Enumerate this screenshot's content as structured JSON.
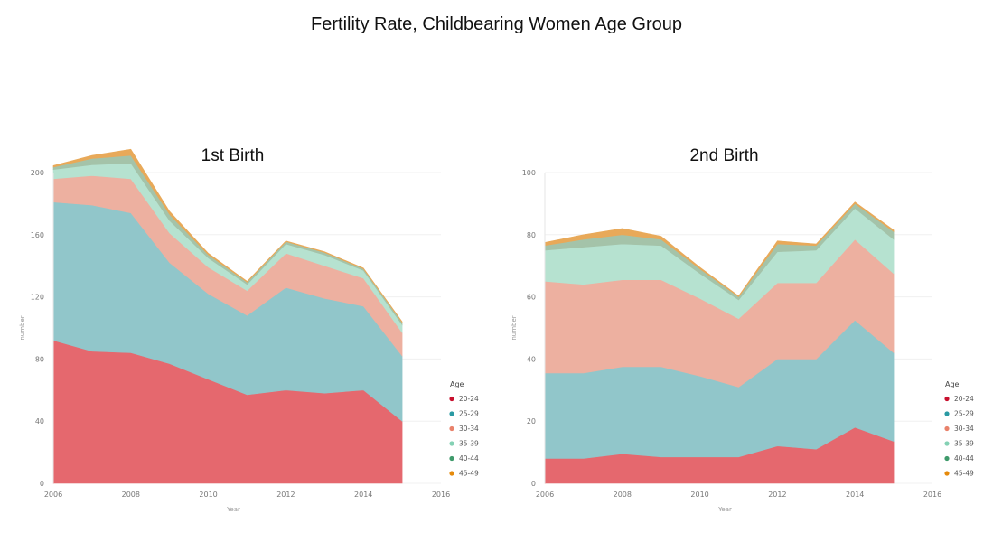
{
  "title": "Fertility Rate, Childbearing Women Age Group",
  "chart_data": [
    {
      "type": "area",
      "stacked": true,
      "title": "1st Birth",
      "xlabel": "Year",
      "ylabel": "number",
      "x": [
        2006,
        2007,
        2008,
        2009,
        2010,
        2011,
        2012,
        2013,
        2014,
        2015
      ],
      "xlim": [
        2006,
        2016
      ],
      "ylim": [
        0,
        200
      ],
      "xticks": [
        2006,
        2008,
        2010,
        2012,
        2014,
        2016
      ],
      "yticks": [
        0,
        40,
        80,
        120,
        160,
        200
      ],
      "legend_title": "Age",
      "legend_position": "right",
      "series": [
        {
          "name": "20-24",
          "color": "#e5686e",
          "values": [
            92,
            85,
            84,
            77,
            67,
            57,
            60,
            58,
            60,
            40
          ]
        },
        {
          "name": "25-29",
          "color": "#91c6ca",
          "values": [
            89,
            94,
            90,
            65,
            55,
            51,
            66,
            61,
            54,
            42
          ]
        },
        {
          "name": "30-34",
          "color": "#edb0a0",
          "values": [
            15,
            19,
            22,
            19,
            17,
            16,
            22,
            21,
            18,
            15
          ]
        },
        {
          "name": "35-39",
          "color": "#b6e2d0",
          "values": [
            6,
            7,
            10,
            8,
            6,
            4,
            6,
            7,
            5,
            5
          ]
        },
        {
          "name": "40-44",
          "color": "#a4c3a9",
          "values": [
            1.5,
            4,
            5,
            4,
            2,
            1.5,
            1.5,
            1.5,
            1,
            1.5
          ]
        },
        {
          "name": "45-49",
          "color": "#e8a959",
          "values": [
            1,
            2,
            4,
            2,
            1,
            0.5,
            0.5,
            0.5,
            0.5,
            0.5
          ]
        }
      ]
    },
    {
      "type": "area",
      "stacked": true,
      "title": "2nd Birth",
      "xlabel": "Year",
      "ylabel": "number",
      "x": [
        2006,
        2007,
        2008,
        2009,
        2010,
        2011,
        2012,
        2013,
        2014,
        2015
      ],
      "xlim": [
        2006,
        2016
      ],
      "ylim": [
        0,
        100
      ],
      "xticks": [
        2006,
        2008,
        2010,
        2012,
        2014,
        2016
      ],
      "yticks": [
        0,
        20,
        40,
        60,
        80,
        100
      ],
      "legend_title": "Age",
      "legend_position": "right",
      "series": [
        {
          "name": "20-24",
          "color": "#e5686e",
          "values": [
            8,
            8,
            9.5,
            8.5,
            8.5,
            8.5,
            12,
            11,
            18,
            13.5
          ]
        },
        {
          "name": "25-29",
          "color": "#91c6ca",
          "values": [
            27.5,
            27.5,
            28,
            29,
            26,
            22.5,
            28,
            29,
            34.5,
            28.5
          ]
        },
        {
          "name": "30-34",
          "color": "#edb0a0",
          "values": [
            29.5,
            28.5,
            28,
            28,
            25,
            22,
            24.5,
            24.5,
            26,
            25.5
          ]
        },
        {
          "name": "35-39",
          "color": "#b6e2d0",
          "values": [
            10,
            12,
            11.5,
            11,
            8,
            6,
            10,
            10.5,
            10,
            11
          ]
        },
        {
          "name": "40-44",
          "color": "#a4c3a9",
          "values": [
            1.5,
            2.5,
            3,
            2,
            1.5,
            1,
            2.5,
            1.5,
            1.5,
            2.5
          ]
        },
        {
          "name": "45-49",
          "color": "#e8a959",
          "values": [
            1,
            1.5,
            2,
            1,
            0.5,
            0.3,
            1,
            0.5,
            0.5,
            0.5
          ]
        }
      ]
    }
  ]
}
